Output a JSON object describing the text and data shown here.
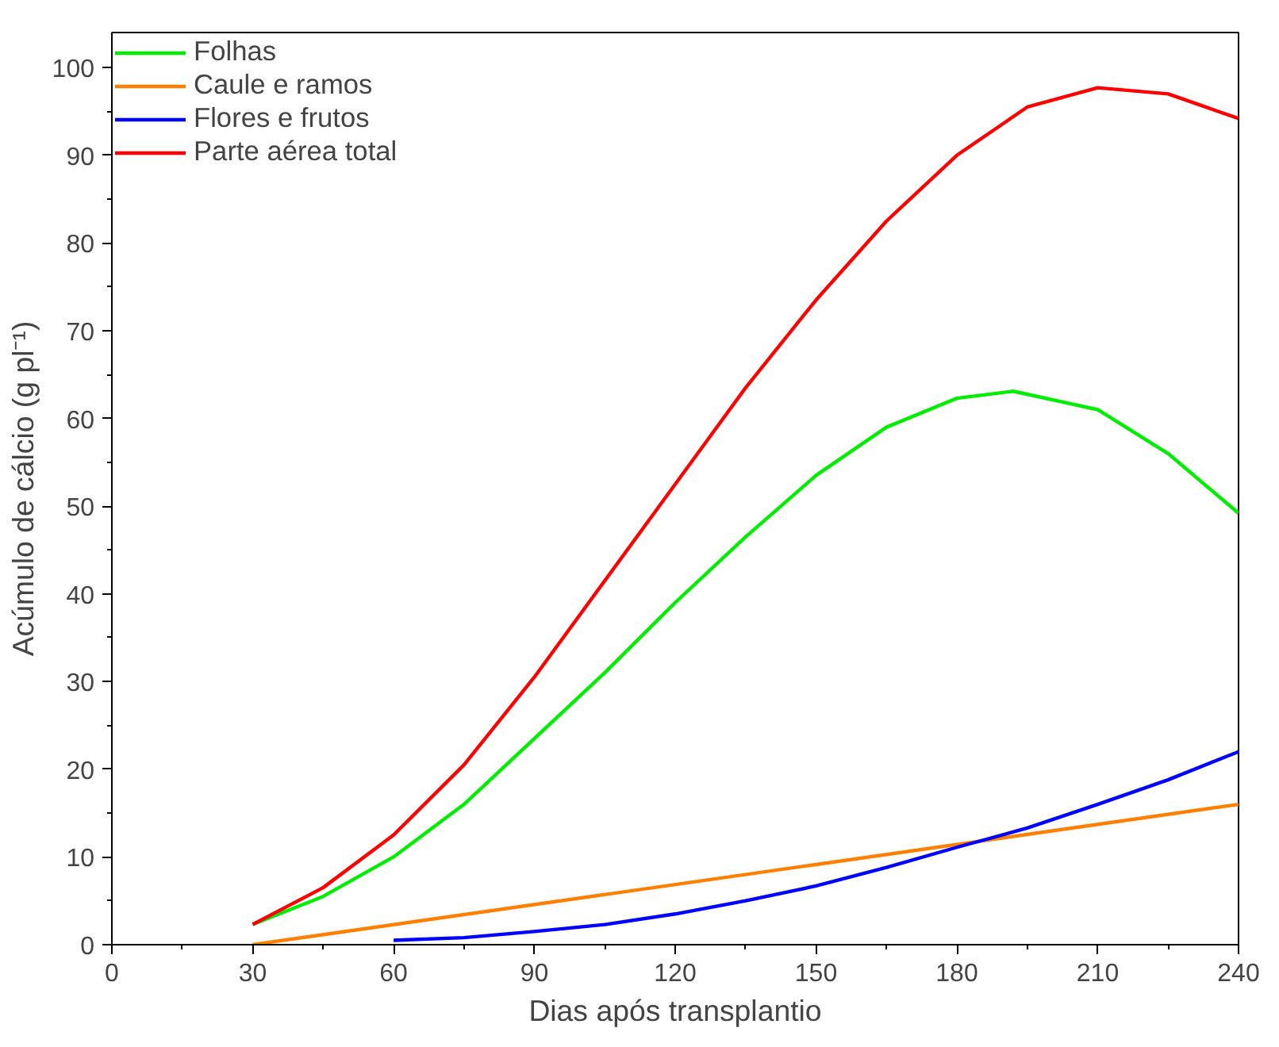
{
  "chart_data": {
    "type": "line",
    "xlabel": "Dias após transplantio",
    "ylabel": "Acúmulo de cálcio (g pl⁻¹)",
    "xlim": [
      0,
      240
    ],
    "xticks": [
      0,
      30,
      60,
      90,
      120,
      150,
      180,
      210,
      240
    ],
    "ylim": [
      0,
      104
    ],
    "yticks": [
      0,
      10,
      20,
      30,
      40,
      50,
      60,
      70,
      80,
      90,
      100
    ],
    "grid": false,
    "legend": "top left",
    "marker": "none",
    "line_style": "solid",
    "series": [
      {
        "name": "Folhas",
        "color": "#00ee00",
        "x": [
          30,
          45,
          60,
          75,
          90,
          105,
          120,
          135,
          150,
          165,
          180,
          192,
          210,
          225,
          240
        ],
        "values": [
          2.3,
          5.5,
          10,
          16,
          23.5,
          31,
          39,
          46.5,
          53.5,
          59,
          62.3,
          63.1,
          61,
          56,
          49.2
        ]
      },
      {
        "name": "Caule e ramos",
        "color": "#ff8000",
        "x": [
          30,
          240
        ],
        "values": [
          0,
          16
        ]
      },
      {
        "name": "Flores e frutos",
        "color": "#0000ff",
        "x": [
          60,
          75,
          90,
          105,
          120,
          135,
          150,
          165,
          180,
          195,
          210,
          225,
          240
        ],
        "values": [
          0.5,
          0.8,
          1.5,
          2.3,
          3.5,
          5,
          6.7,
          8.8,
          11.1,
          13.3,
          16,
          18.8,
          22
        ]
      },
      {
        "name": "Parte aérea total",
        "color": "#ff0000",
        "x": [
          30,
          45,
          60,
          75,
          90,
          105,
          120,
          135,
          150,
          165,
          180,
          195,
          210,
          225,
          240
        ],
        "values": [
          2.3,
          6.5,
          12.5,
          20.5,
          30.5,
          41.5,
          52.5,
          63.5,
          73.5,
          82.5,
          90,
          95.5,
          97.7,
          97,
          94.2
        ]
      }
    ]
  }
}
